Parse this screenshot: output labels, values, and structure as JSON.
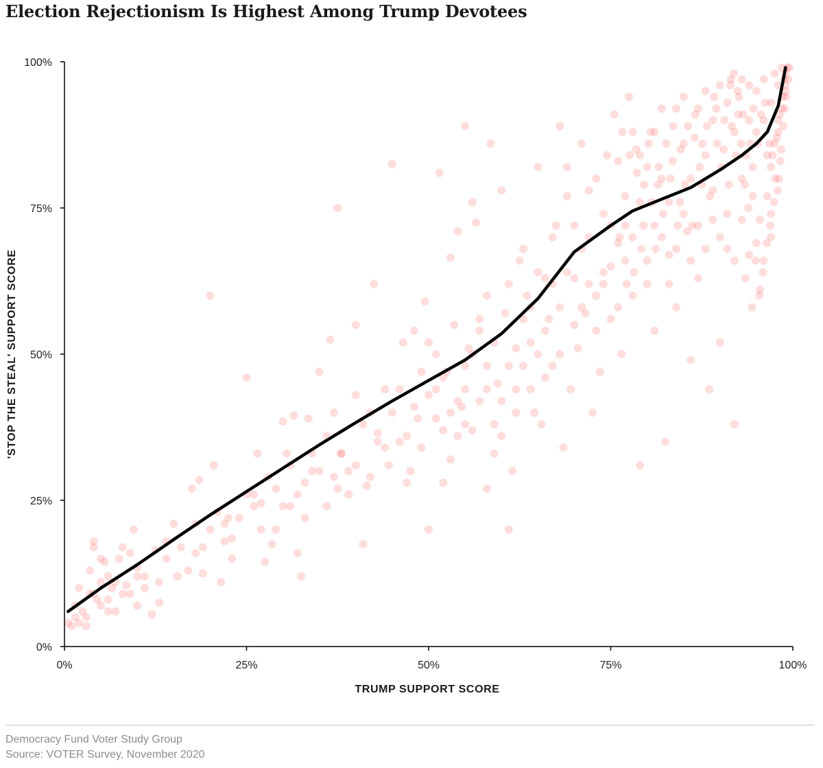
{
  "title": "Election Rejectionism Is Highest Among Trump Devotees",
  "footer": {
    "line1": "Democracy Fund Voter Study Group",
    "line2": "Source: VOTER Survey, November 2020"
  },
  "colors": {
    "points": "#ff2a2a",
    "trend": "#000000",
    "axis": "#000000"
  },
  "chart_data": {
    "type": "scatter",
    "title": "Election Rejectionism Is Highest Among Trump Devotees",
    "xlabel": "TRUMP SUPPORT SCORE",
    "ylabel": "'STOP THE STEAL' SUPPORT SCORE",
    "xlim": [
      0,
      100
    ],
    "ylim": [
      0,
      100
    ],
    "x_ticks": [
      0,
      25,
      50,
      75,
      100
    ],
    "y_ticks": [
      0,
      25,
      50,
      75,
      100
    ],
    "x_tick_labels": [
      "0%",
      "25%",
      "50%",
      "75%",
      "100%"
    ],
    "y_tick_labels": [
      "0%",
      "25%",
      "50%",
      "75%",
      "100%"
    ],
    "grid": false,
    "legend": "none",
    "points_note": "semi-transparent red dots; concentrated near the top-right corner",
    "trend_line": {
      "x": [
        0.5,
        5,
        10,
        15,
        20,
        25,
        30,
        35,
        40,
        45,
        50,
        55,
        60,
        65,
        70,
        75,
        78,
        82,
        86,
        90,
        93,
        95,
        96.5,
        98,
        99
      ],
      "y": [
        6,
        10,
        14,
        18.3,
        22.5,
        26.5,
        30.5,
        34.5,
        38.3,
        42,
        45.5,
        49,
        53.5,
        59.5,
        67.5,
        72,
        74.5,
        76.5,
        78.5,
        81.5,
        84,
        86,
        88,
        92.5,
        99
      ]
    },
    "points": [
      [
        0.5,
        4
      ],
      [
        1,
        3.5
      ],
      [
        1.5,
        7
      ],
      [
        2,
        10
      ],
      [
        2.5,
        6
      ],
      [
        3,
        3.5
      ],
      [
        3.5,
        9
      ],
      [
        3.5,
        13
      ],
      [
        4,
        17
      ],
      [
        4,
        18
      ],
      [
        4.5,
        8
      ],
      [
        5,
        15
      ],
      [
        5,
        11
      ],
      [
        5.5,
        14.5
      ],
      [
        6,
        6
      ],
      [
        6,
        12
      ],
      [
        6.5,
        10
      ],
      [
        7,
        11
      ],
      [
        7.5,
        15
      ],
      [
        8,
        17
      ],
      [
        8.5,
        10.5
      ],
      [
        9,
        16
      ],
      [
        9.5,
        20
      ],
      [
        10,
        13.5
      ],
      [
        10,
        7
      ],
      [
        11,
        12
      ],
      [
        12,
        5.5
      ],
      [
        12.5,
        16.5
      ],
      [
        13,
        7.5
      ],
      [
        14,
        18
      ],
      [
        15,
        21
      ],
      [
        15.5,
        12
      ],
      [
        17.5,
        27
      ],
      [
        18,
        16
      ],
      [
        18.5,
        28.5
      ],
      [
        19,
        12.5
      ],
      [
        20,
        60
      ],
      [
        20.5,
        31
      ],
      [
        21.5,
        11
      ],
      [
        22,
        18
      ],
      [
        22.5,
        22
      ],
      [
        23,
        18.5
      ],
      [
        25,
        26
      ],
      [
        25,
        46
      ],
      [
        26,
        26
      ],
      [
        26.5,
        33
      ],
      [
        27,
        24.5
      ],
      [
        27.5,
        14.5
      ],
      [
        28.5,
        17.5
      ],
      [
        29,
        20
      ],
      [
        30,
        38.5
      ],
      [
        30.5,
        33
      ],
      [
        31,
        24
      ],
      [
        31.5,
        39.5
      ],
      [
        32,
        16
      ],
      [
        32.5,
        12
      ],
      [
        33,
        28
      ],
      [
        33.5,
        39
      ],
      [
        34,
        30
      ],
      [
        35,
        47
      ],
      [
        36,
        24
      ],
      [
        36.5,
        52.5
      ],
      [
        37,
        40
      ],
      [
        37.5,
        27
      ],
      [
        37.5,
        75
      ],
      [
        38,
        33
      ],
      [
        39,
        30
      ],
      [
        40,
        31
      ],
      [
        40,
        55
      ],
      [
        41,
        17.5
      ],
      [
        41.5,
        27.5
      ],
      [
        42,
        40
      ],
      [
        42.5,
        62
      ],
      [
        43,
        36.5
      ],
      [
        44,
        34
      ],
      [
        44.5,
        31
      ],
      [
        45,
        82.5
      ],
      [
        46,
        44
      ],
      [
        46.5,
        52
      ],
      [
        47,
        36
      ],
      [
        47.5,
        30
      ],
      [
        48,
        54
      ],
      [
        48.5,
        39
      ],
      [
        49,
        47
      ],
      [
        49.5,
        59
      ],
      [
        50,
        20
      ],
      [
        50,
        52
      ],
      [
        51,
        44
      ],
      [
        51.5,
        81
      ],
      [
        52,
        37
      ],
      [
        52.5,
        47
      ],
      [
        53,
        66.5
      ],
      [
        53.5,
        55
      ],
      [
        54,
        71
      ],
      [
        54.5,
        41
      ],
      [
        55,
        38
      ],
      [
        55,
        89
      ],
      [
        55.5,
        51
      ],
      [
        56,
        76
      ],
      [
        56.5,
        72.5
      ],
      [
        57,
        54
      ],
      [
        58,
        27
      ],
      [
        58,
        60
      ],
      [
        58.5,
        86
      ],
      [
        59,
        33
      ],
      [
        59.5,
        45
      ],
      [
        60,
        78
      ],
      [
        60.5,
        57
      ],
      [
        61,
        20
      ],
      [
        61.5,
        30
      ],
      [
        62,
        44
      ],
      [
        62.5,
        66
      ],
      [
        63,
        48
      ],
      [
        63.5,
        60
      ],
      [
        64,
        52
      ],
      [
        64.5,
        40
      ],
      [
        65,
        82
      ],
      [
        65.5,
        38
      ],
      [
        66,
        63
      ],
      [
        66.5,
        56
      ],
      [
        67,
        48
      ],
      [
        67.5,
        72
      ],
      [
        68,
        89
      ],
      [
        68.5,
        34
      ],
      [
        69,
        77
      ],
      [
        69.5,
        44
      ],
      [
        70,
        63
      ],
      [
        70.5,
        51
      ],
      [
        71,
        86
      ],
      [
        71.5,
        57
      ],
      [
        72,
        70
      ],
      [
        72.5,
        40
      ],
      [
        73,
        80
      ],
      [
        73.5,
        47
      ],
      [
        74,
        64
      ],
      [
        74.5,
        84
      ],
      [
        75,
        56
      ],
      [
        75.5,
        91
      ],
      [
        76,
        69
      ],
      [
        76.5,
        50
      ],
      [
        77,
        77
      ],
      [
        77.5,
        94
      ],
      [
        78,
        60
      ],
      [
        78.5,
        85
      ],
      [
        79,
        31
      ],
      [
        79.5,
        72
      ],
      [
        80,
        62
      ],
      [
        80.5,
        88
      ],
      [
        81,
        54
      ],
      [
        81.5,
        79
      ],
      [
        82,
        92
      ],
      [
        82.5,
        35
      ],
      [
        83,
        67
      ],
      [
        83.5,
        83
      ],
      [
        84,
        58
      ],
      [
        84.5,
        76
      ],
      [
        85,
        94
      ],
      [
        85.5,
        71
      ],
      [
        86,
        49
      ],
      [
        86.5,
        87
      ],
      [
        87,
        63
      ],
      [
        87.5,
        79
      ],
      [
        88,
        95
      ],
      [
        88.5,
        44
      ],
      [
        89,
        73
      ],
      [
        89.5,
        92
      ],
      [
        90,
        52
      ],
      [
        90.5,
        85
      ],
      [
        91,
        68
      ],
      [
        91.5,
        97
      ],
      [
        92,
        38
      ],
      [
        92.5,
        91
      ],
      [
        93,
        80
      ],
      [
        93.5,
        63
      ],
      [
        94,
        96
      ],
      [
        94.5,
        77
      ],
      [
        95,
        88
      ],
      [
        95.5,
        61
      ],
      [
        96,
        97
      ],
      [
        96.5,
        84
      ],
      [
        97,
        70
      ],
      [
        97,
        93
      ],
      [
        97.5,
        98
      ],
      [
        98,
        90
      ],
      [
        98,
        96
      ],
      [
        98.5,
        99
      ],
      [
        99,
        95
      ],
      [
        99,
        98
      ],
      [
        99.5,
        99
      ],
      [
        96,
        90
      ],
      [
        95,
        95
      ],
      [
        94,
        90
      ],
      [
        93,
        97
      ],
      [
        92,
        88
      ],
      [
        91,
        93
      ],
      [
        90,
        96
      ],
      [
        89,
        90
      ],
      [
        88,
        84
      ],
      [
        87,
        92
      ],
      [
        86,
        80
      ],
      [
        85,
        86
      ],
      [
        84,
        92
      ],
      [
        83,
        76
      ],
      [
        82,
        70
      ],
      [
        81,
        88
      ],
      [
        80,
        82
      ],
      [
        79,
        76
      ],
      [
        78,
        88
      ],
      [
        77,
        72
      ],
      [
        76,
        83
      ],
      [
        75,
        65
      ],
      [
        74,
        74
      ],
      [
        73,
        60
      ],
      [
        72,
        78
      ],
      [
        71,
        68
      ],
      [
        70,
        55
      ],
      [
        69,
        82
      ],
      [
        68,
        58
      ],
      [
        67,
        70
      ],
      [
        66,
        46
      ],
      [
        65,
        64
      ],
      [
        64,
        58
      ],
      [
        63,
        68
      ],
      [
        62,
        51
      ],
      [
        61,
        62
      ],
      [
        60,
        42
      ],
      [
        59,
        52
      ],
      [
        58,
        44
      ],
      [
        57,
        56
      ],
      [
        56,
        37
      ],
      [
        55,
        48
      ],
      [
        54,
        42
      ],
      [
        53,
        32
      ],
      [
        52,
        46
      ],
      [
        51,
        39
      ],
      [
        50,
        43
      ],
      [
        49,
        34
      ],
      [
        48,
        41
      ],
      [
        47,
        28
      ],
      [
        46,
        35
      ],
      [
        45,
        40
      ],
      [
        44,
        44
      ],
      [
        43,
        35
      ],
      [
        42,
        29
      ],
      [
        41,
        38
      ],
      [
        40,
        43
      ],
      [
        39,
        26
      ],
      [
        38,
        33
      ],
      [
        37,
        29
      ],
      [
        36,
        36
      ],
      [
        35,
        30
      ],
      [
        34,
        33
      ],
      [
        33,
        22
      ],
      [
        32,
        26
      ],
      [
        31,
        31
      ],
      [
        30,
        24
      ],
      [
        29,
        27
      ],
      [
        28,
        29
      ],
      [
        27,
        20
      ],
      [
        26,
        24
      ],
      [
        24,
        22
      ],
      [
        23,
        15
      ],
      [
        22,
        21
      ],
      [
        21,
        23
      ],
      [
        20,
        20
      ],
      [
        19,
        17
      ],
      [
        18,
        21
      ],
      [
        17,
        13
      ],
      [
        16,
        17
      ],
      [
        14,
        15
      ],
      [
        13,
        11
      ],
      [
        11,
        10
      ],
      [
        10,
        12
      ],
      [
        9,
        9
      ],
      [
        8,
        9
      ],
      [
        7,
        6
      ],
      [
        6,
        8
      ],
      [
        5,
        7
      ],
      [
        4,
        9
      ],
      [
        3,
        5
      ],
      [
        2,
        4
      ],
      [
        1.5,
        5
      ],
      [
        97,
        82
      ],
      [
        97.5,
        86
      ],
      [
        98,
        88
      ],
      [
        98.5,
        92
      ],
      [
        99,
        96
      ],
      [
        97,
        74
      ],
      [
        96.5,
        77
      ],
      [
        96,
        66
      ],
      [
        95.5,
        73
      ],
      [
        95,
        69
      ],
      [
        94.5,
        82
      ],
      [
        94,
        67
      ],
      [
        93,
        73
      ],
      [
        92,
        66
      ],
      [
        91,
        74
      ],
      [
        90,
        70
      ],
      [
        89,
        78
      ],
      [
        88,
        68
      ],
      [
        87,
        72
      ],
      [
        86,
        66
      ],
      [
        85,
        74
      ],
      [
        84,
        68
      ],
      [
        83,
        62
      ],
      [
        82,
        80
      ],
      [
        81,
        72
      ],
      [
        80,
        66
      ],
      [
        79,
        84
      ],
      [
        78,
        70
      ],
      [
        77,
        66
      ],
      [
        76,
        58
      ],
      [
        75,
        72
      ],
      [
        74,
        62
      ],
      [
        73,
        54
      ],
      [
        72,
        62
      ],
      [
        71,
        58
      ],
      [
        70,
        72
      ],
      [
        69,
        64
      ],
      [
        68,
        50
      ],
      [
        67,
        62
      ],
      [
        66,
        54
      ],
      [
        65,
        50
      ],
      [
        64,
        44
      ],
      [
        63,
        56
      ],
      [
        62,
        40
      ],
      [
        61,
        48
      ],
      [
        60,
        36
      ],
      [
        59,
        38
      ],
      [
        58,
        48
      ],
      [
        57,
        42
      ],
      [
        56,
        50
      ],
      [
        55,
        44
      ],
      [
        54,
        36
      ],
      [
        53,
        40
      ],
      [
        52,
        28
      ],
      [
        51,
        50
      ],
      [
        97.8,
        87
      ],
      [
        98.2,
        91
      ],
      [
        98.6,
        94
      ],
      [
        98.8,
        97
      ],
      [
        99.2,
        99
      ],
      [
        98.4,
        85
      ],
      [
        97.6,
        80
      ],
      [
        97.2,
        84
      ],
      [
        96.8,
        86
      ],
      [
        96.2,
        93
      ],
      [
        95.6,
        91
      ],
      [
        95.2,
        86
      ],
      [
        94.6,
        92
      ],
      [
        94.2,
        86
      ],
      [
        93.6,
        84
      ],
      [
        93.2,
        91
      ],
      [
        92.6,
        94
      ],
      [
        92.2,
        84
      ],
      [
        91.6,
        89
      ],
      [
        91.2,
        79
      ],
      [
        90.6,
        90
      ],
      [
        90.2,
        82
      ],
      [
        89.6,
        86
      ],
      [
        89.2,
        94
      ],
      [
        88.6,
        77
      ],
      [
        88.2,
        89
      ],
      [
        87.6,
        86
      ],
      [
        87.2,
        82
      ],
      [
        86.6,
        91
      ],
      [
        86.2,
        72
      ],
      [
        85.6,
        89
      ],
      [
        85.2,
        79
      ],
      [
        84.6,
        85
      ],
      [
        84.2,
        72
      ],
      [
        83.6,
        89
      ],
      [
        83.2,
        80
      ],
      [
        82.6,
        86
      ],
      [
        82.2,
        74
      ],
      [
        81.6,
        82
      ],
      [
        81.2,
        68
      ],
      [
        80.6,
        76
      ],
      [
        80.2,
        86
      ],
      [
        79.6,
        79
      ],
      [
        79.2,
        68
      ],
      [
        78.6,
        81
      ],
      [
        78.2,
        64
      ],
      [
        77.6,
        84
      ],
      [
        77.2,
        62
      ],
      [
        76.6,
        88
      ],
      [
        76.2,
        70
      ],
      [
        99.4,
        97
      ],
      [
        99.1,
        94
      ],
      [
        98.9,
        92
      ],
      [
        98.7,
        89
      ],
      [
        98.3,
        83
      ],
      [
        98.1,
        80
      ],
      [
        97.9,
        78
      ],
      [
        97.4,
        76
      ],
      [
        96.9,
        72
      ],
      [
        96.4,
        69
      ],
      [
        95.9,
        64
      ],
      [
        95.4,
        60
      ],
      [
        94.9,
        66
      ],
      [
        94.4,
        58
      ],
      [
        93.9,
        75
      ],
      [
        93.4,
        79
      ],
      [
        92.9,
        86
      ],
      [
        92.4,
        95
      ],
      [
        91.9,
        98
      ],
      [
        91.4,
        96
      ]
    ]
  }
}
